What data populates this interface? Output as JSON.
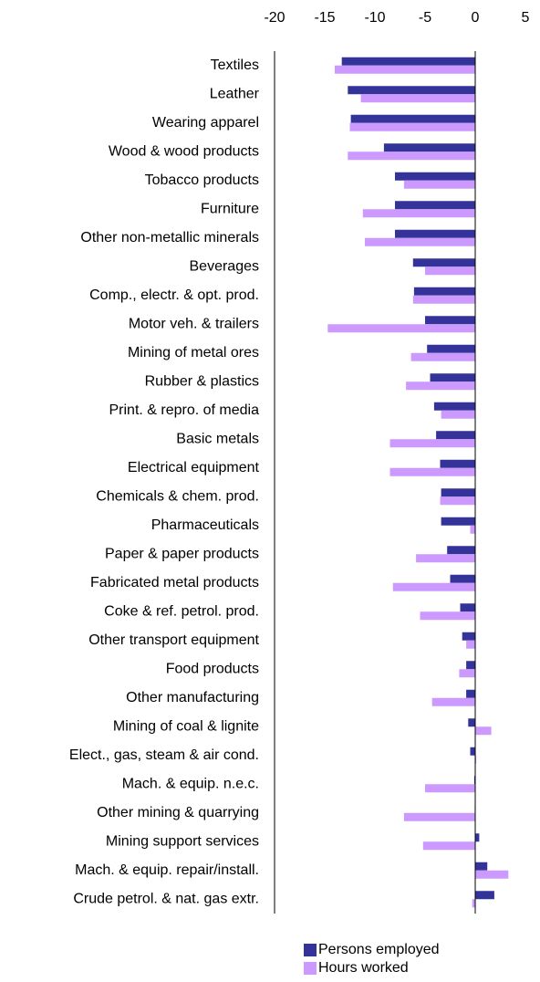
{
  "chart_data": {
    "type": "hbar",
    "categories": [
      "Textiles",
      "Leather",
      "Wearing apparel",
      "Wood & wood products",
      "Tobacco products",
      "Furniture",
      "Other non-metallic minerals",
      "Beverages",
      "Comp., electr. & opt. prod.",
      "Motor veh. & trailers",
      "Mining of metal ores",
      "Rubber & plastics",
      "Print. & repro. of media",
      "Basic metals",
      "Electrical equipment",
      "Chemicals & chem. prod.",
      "Pharmaceuticals",
      "Paper & paper products",
      "Fabricated metal products",
      "Coke & ref. petrol. prod.",
      "Other transport equipment",
      "Food products",
      "Other manufacturing",
      "Mining of coal & lignite",
      "Elect., gas, steam & air cond.",
      "Mach. & equip. n.e.c.",
      "Other mining & quarrying",
      "Mining support services",
      "Mach. & equip. repair/install.",
      "Crude petrol. & nat. gas extr."
    ],
    "series": [
      {
        "name": "Persons employed",
        "color": "#333399",
        "values": [
          -13.3,
          -12.7,
          -12.4,
          -9.1,
          -8.0,
          -8.0,
          -8.0,
          -6.2,
          -6.1,
          -5.0,
          -4.8,
          -4.5,
          -4.1,
          -3.9,
          -3.5,
          -3.4,
          -3.4,
          -2.8,
          -2.5,
          -1.5,
          -1.3,
          -0.9,
          -0.9,
          -0.7,
          -0.5,
          -0.1,
          -0.05,
          0.4,
          1.2,
          1.9
        ]
      },
      {
        "name": "Hours worked",
        "color": "#cc99ff",
        "values": [
          -14.0,
          -11.4,
          -12.5,
          -12.7,
          -7.1,
          -11.2,
          -11.0,
          -5.0,
          -6.2,
          -14.7,
          -6.4,
          -6.9,
          -3.4,
          -8.5,
          -8.5,
          -3.5,
          -0.5,
          -5.9,
          -8.2,
          -5.5,
          -0.9,
          -1.6,
          -4.3,
          1.6,
          0.1,
          -5.0,
          -7.1,
          -5.2,
          3.3,
          -0.3
        ]
      }
    ],
    "xlim": [
      -20,
      5
    ],
    "xticks": [
      -20,
      -15,
      -10,
      -5,
      0,
      5
    ]
  }
}
